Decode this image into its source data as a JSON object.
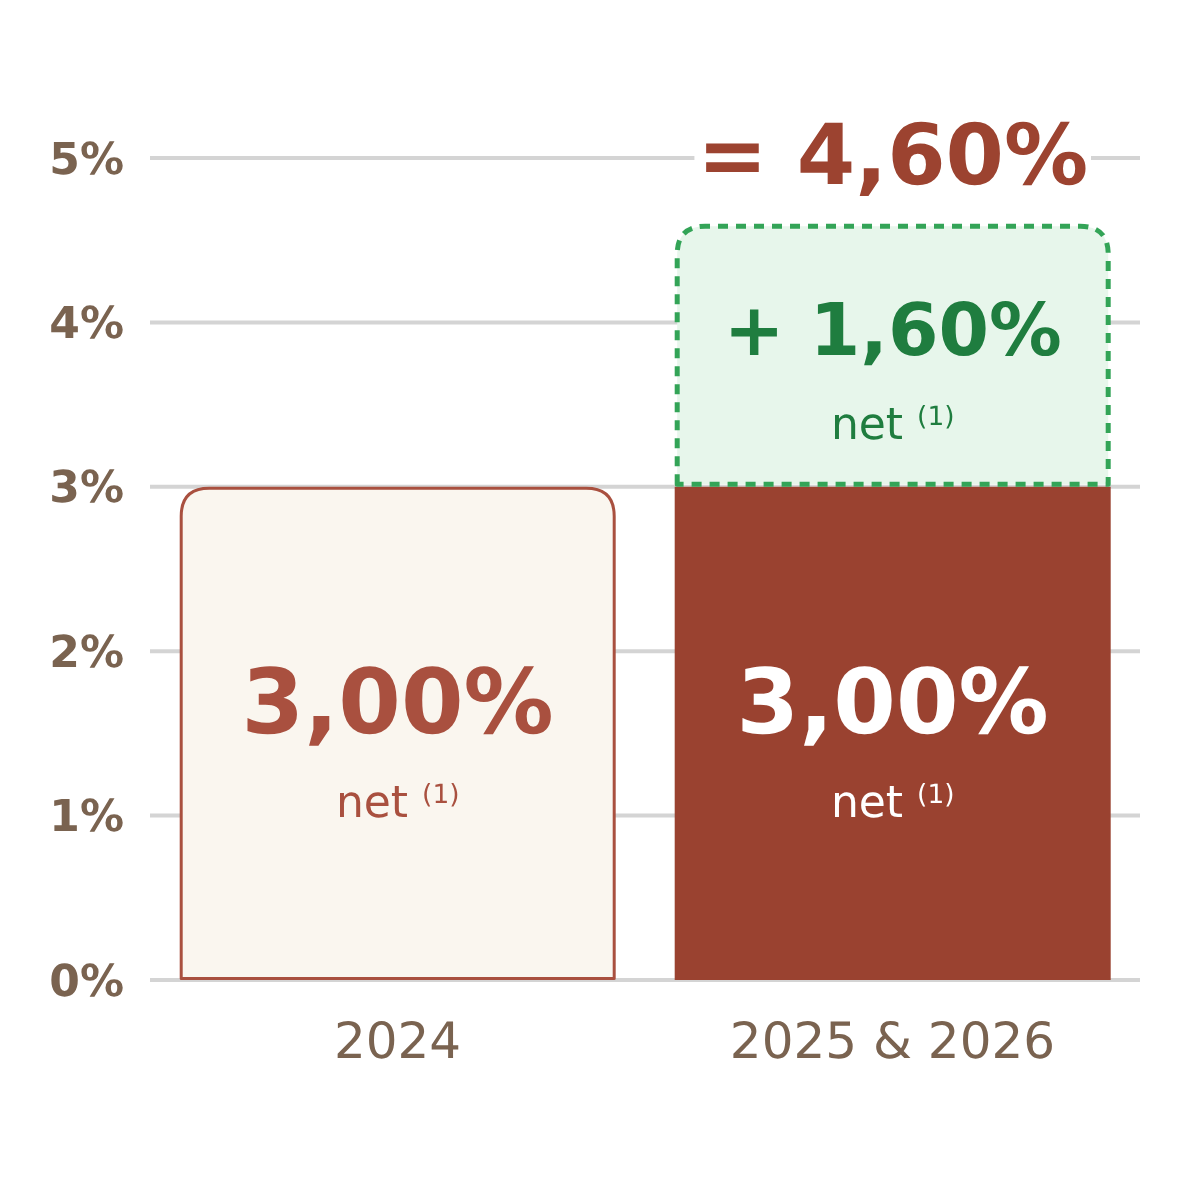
{
  "chart_data": {
    "type": "bar",
    "categories": [
      "2024",
      "2025 & 2026"
    ],
    "stacked": true,
    "series": [
      {
        "colors": [
          "#faf6ef",
          "#9a4230"
        ],
        "values": [
          3.0,
          3.0
        ],
        "value_labels": [
          "3,00%\nnet $^{(1)}$",
          "3,00%\nnet $^{(1)}$"
        ]
      },
      {
        "color": "#e7f6eb",
        "values": [
          null,
          1.6
        ],
        "value_labels": [
          null,
          "+ 1,60%\nnet $^{(1)}$"
        ]
      }
    ],
    "totals": [
      null,
      "= 4,60%"
    ],
    "ylim": [
      0,
      5
    ],
    "yticks": [
      {
        "value": 0,
        "label": "0%"
      },
      {
        "value": 1,
        "label": "1%"
      },
      {
        "value": 2,
        "label": "2%"
      },
      {
        "value": 3,
        "label": "3%"
      },
      {
        "value": 4,
        "label": "4%"
      },
      {
        "value": 5,
        "label": "5%"
      }
    ],
    "grid": "y"
  }
}
